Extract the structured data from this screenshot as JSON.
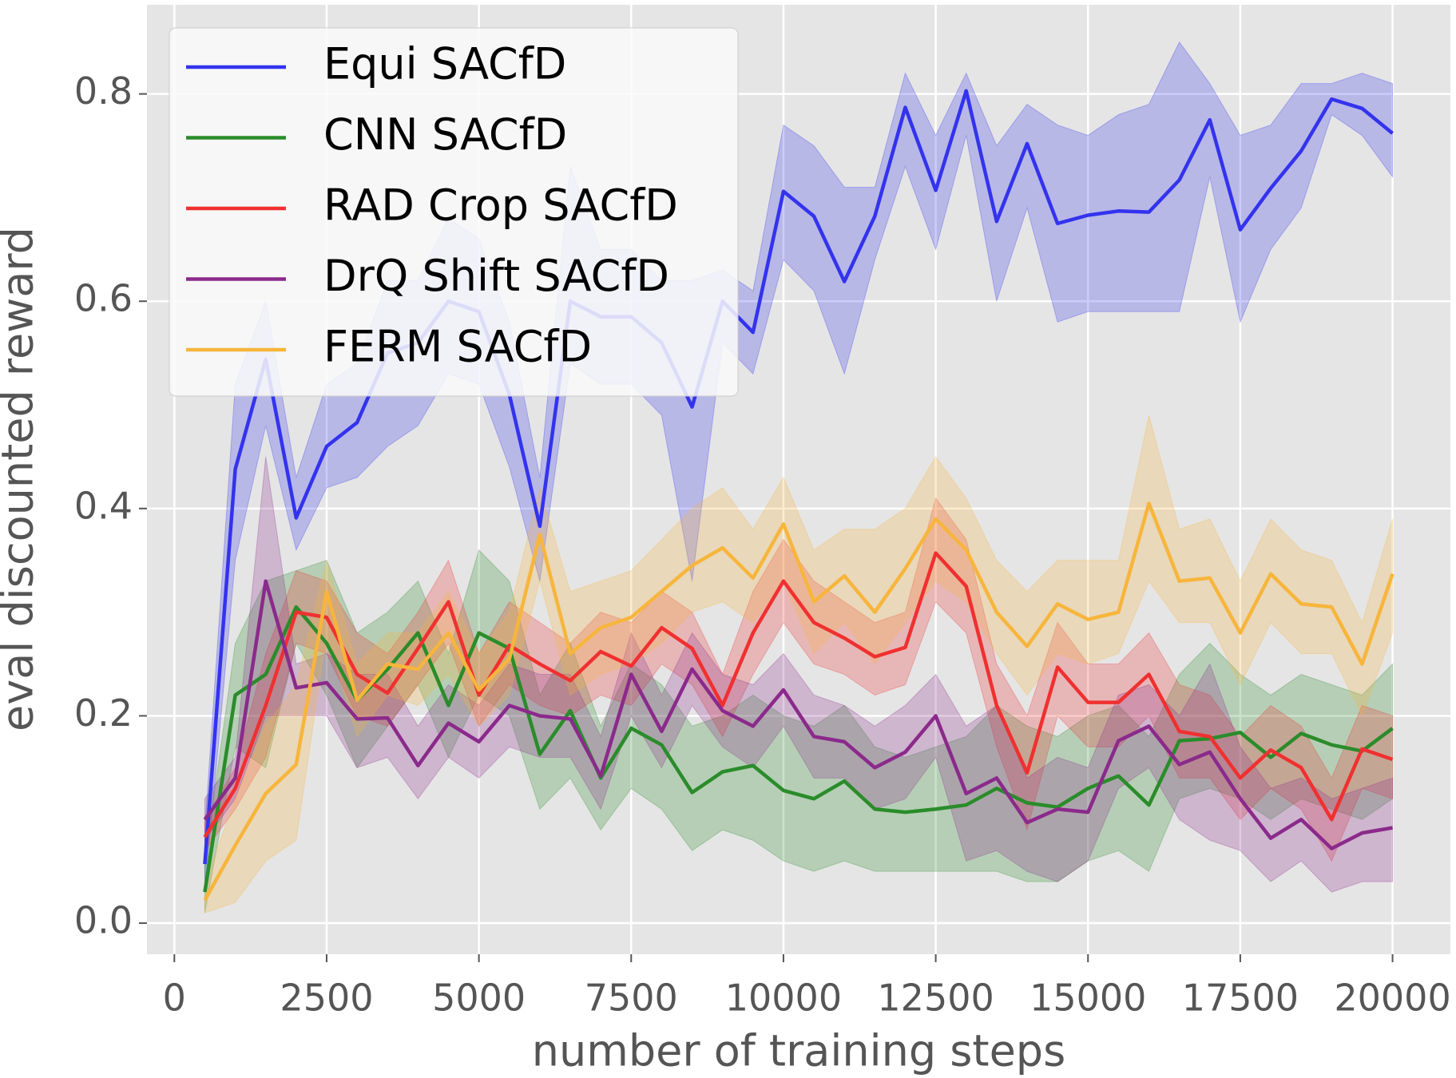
{
  "chart_data": {
    "type": "line",
    "xlabel": "number of training steps",
    "ylabel": "eval discounted reward",
    "x": [
      500,
      1000,
      1500,
      2000,
      2500,
      3000,
      3500,
      4000,
      4500,
      5000,
      5500,
      6000,
      6500,
      7000,
      7500,
      8000,
      8500,
      9000,
      9500,
      10000,
      10500,
      11000,
      11500,
      12000,
      12500,
      13000,
      13500,
      14000,
      14500,
      15000,
      15500,
      16000,
      16500,
      17000,
      17500,
      18000,
      18500,
      19000,
      19500,
      20000
    ],
    "xlim": [
      -450,
      20950
    ],
    "ylim": [
      -0.03,
      0.886
    ],
    "xticks": [
      0,
      2500,
      5000,
      7500,
      10000,
      12500,
      15000,
      17500,
      20000
    ],
    "yticks": [
      {
        "value": 0,
        "label": "0.0"
      },
      0.2,
      0.4,
      0.6,
      0.8
    ],
    "grid": true,
    "legend": "upper left",
    "series": [
      {
        "name": "Equi SACfD",
        "color": "#3333ee",
        "values": [
          0.057,
          0.438,
          0.544,
          0.391,
          0.46,
          0.483,
          0.55,
          0.56,
          0.6,
          0.59,
          0.51,
          0.383,
          0.6,
          0.585,
          0.585,
          0.56,
          0.498,
          0.6,
          0.57,
          0.706,
          0.682,
          0.619,
          0.682,
          0.787,
          0.707,
          0.803,
          0.677,
          0.752,
          0.675,
          0.683,
          0.687,
          0.686,
          0.717,
          0.775,
          0.669,
          0.709,
          0.745,
          0.795,
          0.786,
          0.762
        ],
        "lower": [
          0.03,
          0.35,
          0.48,
          0.36,
          0.42,
          0.43,
          0.46,
          0.48,
          0.53,
          0.52,
          0.44,
          0.33,
          0.54,
          0.52,
          0.52,
          0.49,
          0.33,
          0.56,
          0.53,
          0.64,
          0.61,
          0.53,
          0.64,
          0.73,
          0.65,
          0.76,
          0.6,
          0.69,
          0.58,
          0.59,
          0.59,
          0.59,
          0.59,
          0.72,
          0.58,
          0.65,
          0.69,
          0.78,
          0.76,
          0.72
        ],
        "upper": [
          0.09,
          0.52,
          0.6,
          0.43,
          0.52,
          0.54,
          0.62,
          0.62,
          0.68,
          0.66,
          0.58,
          0.43,
          0.73,
          0.65,
          0.65,
          0.62,
          0.62,
          0.63,
          0.61,
          0.77,
          0.75,
          0.71,
          0.71,
          0.82,
          0.76,
          0.82,
          0.75,
          0.79,
          0.77,
          0.76,
          0.78,
          0.79,
          0.85,
          0.81,
          0.76,
          0.77,
          0.81,
          0.81,
          0.82,
          0.81
        ]
      },
      {
        "name": "CNN SACfD",
        "color": "#2a8c2a",
        "values": [
          0.03,
          0.22,
          0.24,
          0.305,
          0.27,
          0.215,
          0.245,
          0.28,
          0.21,
          0.28,
          0.265,
          0.163,
          0.205,
          0.14,
          0.188,
          0.172,
          0.126,
          0.146,
          0.152,
          0.128,
          0.12,
          0.137,
          0.11,
          0.107,
          0.11,
          0.114,
          0.13,
          0.116,
          0.112,
          0.13,
          0.142,
          0.114,
          0.176,
          0.178,
          0.184,
          0.16,
          0.183,
          0.172,
          0.166,
          0.188
        ],
        "lower": [
          0.01,
          0.17,
          0.15,
          0.27,
          0.22,
          0.15,
          0.19,
          0.23,
          0.16,
          0.22,
          0.2,
          0.11,
          0.14,
          0.09,
          0.13,
          0.11,
          0.07,
          0.09,
          0.08,
          0.06,
          0.05,
          0.06,
          0.05,
          0.05,
          0.05,
          0.05,
          0.05,
          0.04,
          0.04,
          0.06,
          0.07,
          0.05,
          0.12,
          0.13,
          0.12,
          0.1,
          0.12,
          0.11,
          0.1,
          0.12
        ],
        "upper": [
          0.06,
          0.27,
          0.33,
          0.34,
          0.35,
          0.28,
          0.3,
          0.33,
          0.26,
          0.36,
          0.33,
          0.22,
          0.27,
          0.19,
          0.25,
          0.23,
          0.19,
          0.2,
          0.22,
          0.2,
          0.19,
          0.21,
          0.17,
          0.16,
          0.17,
          0.18,
          0.21,
          0.19,
          0.18,
          0.2,
          0.21,
          0.18,
          0.24,
          0.27,
          0.24,
          0.22,
          0.24,
          0.23,
          0.22,
          0.25
        ]
      },
      {
        "name": "RAD Crop SACfD",
        "color": "#f03030",
        "values": [
          0.083,
          0.13,
          0.21,
          0.3,
          0.295,
          0.24,
          0.222,
          0.265,
          0.31,
          0.22,
          0.268,
          0.25,
          0.234,
          0.262,
          0.248,
          0.285,
          0.265,
          0.21,
          0.28,
          0.33,
          0.29,
          0.275,
          0.257,
          0.266,
          0.357,
          0.325,
          0.21,
          0.145,
          0.247,
          0.213,
          0.213,
          0.24,
          0.185,
          0.18,
          0.14,
          0.167,
          0.15,
          0.1,
          0.168,
          0.158
        ],
        "lower": [
          0.07,
          0.11,
          0.16,
          0.27,
          0.26,
          0.2,
          0.19,
          0.23,
          0.27,
          0.19,
          0.23,
          0.21,
          0.2,
          0.22,
          0.21,
          0.25,
          0.23,
          0.18,
          0.24,
          0.29,
          0.25,
          0.24,
          0.22,
          0.23,
          0.31,
          0.28,
          0.17,
          0.09,
          0.2,
          0.17,
          0.17,
          0.2,
          0.14,
          0.14,
          0.1,
          0.13,
          0.11,
          0.06,
          0.13,
          0.12
        ],
        "upper": [
          0.1,
          0.15,
          0.26,
          0.34,
          0.33,
          0.28,
          0.26,
          0.3,
          0.35,
          0.26,
          0.31,
          0.29,
          0.27,
          0.3,
          0.29,
          0.32,
          0.3,
          0.24,
          0.32,
          0.37,
          0.33,
          0.31,
          0.29,
          0.3,
          0.41,
          0.37,
          0.25,
          0.2,
          0.29,
          0.25,
          0.25,
          0.28,
          0.23,
          0.22,
          0.18,
          0.21,
          0.19,
          0.14,
          0.21,
          0.2
        ]
      },
      {
        "name": "DrQ Shift SACfD",
        "color": "#8b2a8b",
        "values": [
          0.1,
          0.14,
          0.33,
          0.227,
          0.232,
          0.197,
          0.198,
          0.152,
          0.193,
          0.175,
          0.21,
          0.2,
          0.197,
          0.142,
          0.24,
          0.185,
          0.245,
          0.205,
          0.19,
          0.225,
          0.18,
          0.175,
          0.15,
          0.165,
          0.2,
          0.125,
          0.14,
          0.097,
          0.11,
          0.107,
          0.176,
          0.19,
          0.153,
          0.165,
          0.12,
          0.082,
          0.1,
          0.072,
          0.087,
          0.092
        ],
        "lower": [
          0.08,
          0.12,
          0.2,
          0.2,
          0.2,
          0.15,
          0.16,
          0.12,
          0.16,
          0.14,
          0.17,
          0.16,
          0.16,
          0.11,
          0.2,
          0.15,
          0.21,
          0.17,
          0.15,
          0.19,
          0.14,
          0.14,
          0.11,
          0.12,
          0.16,
          0.06,
          0.07,
          0.05,
          0.04,
          0.06,
          0.13,
          0.15,
          0.1,
          0.08,
          0.07,
          0.04,
          0.06,
          0.03,
          0.04,
          0.04
        ],
        "upper": [
          0.12,
          0.16,
          0.45,
          0.25,
          0.26,
          0.24,
          0.24,
          0.19,
          0.23,
          0.21,
          0.25,
          0.24,
          0.24,
          0.18,
          0.28,
          0.22,
          0.28,
          0.24,
          0.23,
          0.26,
          0.22,
          0.21,
          0.19,
          0.21,
          0.24,
          0.19,
          0.21,
          0.14,
          0.16,
          0.15,
          0.22,
          0.23,
          0.2,
          0.25,
          0.17,
          0.13,
          0.14,
          0.12,
          0.13,
          0.14
        ]
      },
      {
        "name": "FERM SACfD",
        "color": "#f7b53c",
        "values": [
          0.022,
          0.075,
          0.125,
          0.153,
          0.32,
          0.215,
          0.25,
          0.245,
          0.28,
          0.225,
          0.255,
          0.375,
          0.26,
          0.285,
          0.295,
          0.32,
          0.345,
          0.362,
          0.333,
          0.385,
          0.31,
          0.335,
          0.3,
          0.342,
          0.39,
          0.36,
          0.3,
          0.267,
          0.308,
          0.293,
          0.3,
          0.405,
          0.33,
          0.333,
          0.28,
          0.337,
          0.308,
          0.305,
          0.25,
          0.337
        ],
        "lower": [
          0.01,
          0.02,
          0.06,
          0.08,
          0.28,
          0.18,
          0.22,
          0.21,
          0.24,
          0.19,
          0.22,
          0.33,
          0.22,
          0.24,
          0.25,
          0.27,
          0.3,
          0.31,
          0.29,
          0.33,
          0.26,
          0.29,
          0.25,
          0.29,
          0.33,
          0.31,
          0.26,
          0.22,
          0.26,
          0.25,
          0.26,
          0.33,
          0.29,
          0.29,
          0.23,
          0.29,
          0.26,
          0.26,
          0.2,
          0.28
        ],
        "upper": [
          0.04,
          0.12,
          0.19,
          0.23,
          0.35,
          0.25,
          0.28,
          0.28,
          0.32,
          0.26,
          0.3,
          0.42,
          0.32,
          0.33,
          0.34,
          0.37,
          0.4,
          0.42,
          0.38,
          0.43,
          0.36,
          0.38,
          0.38,
          0.4,
          0.45,
          0.41,
          0.35,
          0.32,
          0.35,
          0.35,
          0.35,
          0.49,
          0.38,
          0.39,
          0.33,
          0.39,
          0.36,
          0.35,
          0.29,
          0.39
        ]
      }
    ]
  }
}
